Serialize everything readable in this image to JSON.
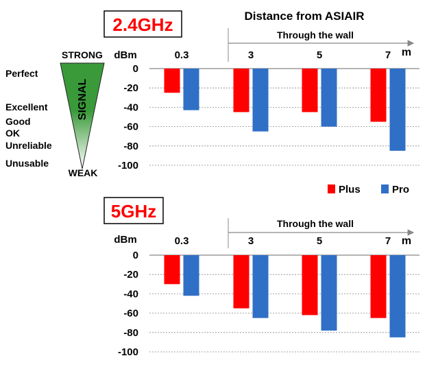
{
  "header": {
    "title": "Distance from ASIAIR"
  },
  "legend": {
    "items": [
      {
        "label": "Plus",
        "color": "#ff0000"
      },
      {
        "label": "Pro",
        "color": "#2f6fc6"
      }
    ]
  },
  "signal_scale": {
    "strong_label": "STRONG",
    "weak_label": "WEAK",
    "signal_label": "SIGNAL",
    "levels": [
      "Perfect",
      "Excellent",
      "Good",
      "OK",
      "Unreliable",
      "Unusable"
    ],
    "gradient_top": "#3a9a3a",
    "gradient_bottom": "#ffffff"
  },
  "colors": {
    "badge_text": "#ff0000",
    "badge_border": "#000000",
    "plus": "#ff0000",
    "pro": "#2f6fc6",
    "grid": "#888888"
  },
  "chart_data": [
    {
      "type": "bar",
      "badge": "2.4GHz",
      "ylabel": "dBm",
      "xunit": "m",
      "wall_label": "Through the wall",
      "categories": [
        "0.3",
        "3",
        "5",
        "7"
      ],
      "yticks": [
        "0",
        "-20",
        "-40",
        "-60",
        "-80",
        "-100"
      ],
      "ylim": [
        -100,
        0
      ],
      "grid": true,
      "series": [
        {
          "name": "Plus",
          "values": [
            -25,
            -45,
            -45,
            -55
          ]
        },
        {
          "name": "Pro",
          "values": [
            -43,
            -65,
            -60,
            -85
          ]
        }
      ]
    },
    {
      "type": "bar",
      "badge": "5GHz",
      "ylabel": "dBm",
      "xunit": "m",
      "wall_label": "Through the wall",
      "categories": [
        "0.3",
        "3",
        "5",
        "7"
      ],
      "yticks": [
        "0",
        "-20",
        "-40",
        "-60",
        "-80",
        "-100"
      ],
      "ylim": [
        -100,
        0
      ],
      "grid": true,
      "series": [
        {
          "name": "Plus",
          "values": [
            -30,
            -55,
            -62,
            -65
          ]
        },
        {
          "name": "Pro",
          "values": [
            -42,
            -65,
            -78,
            -85
          ]
        }
      ]
    }
  ]
}
